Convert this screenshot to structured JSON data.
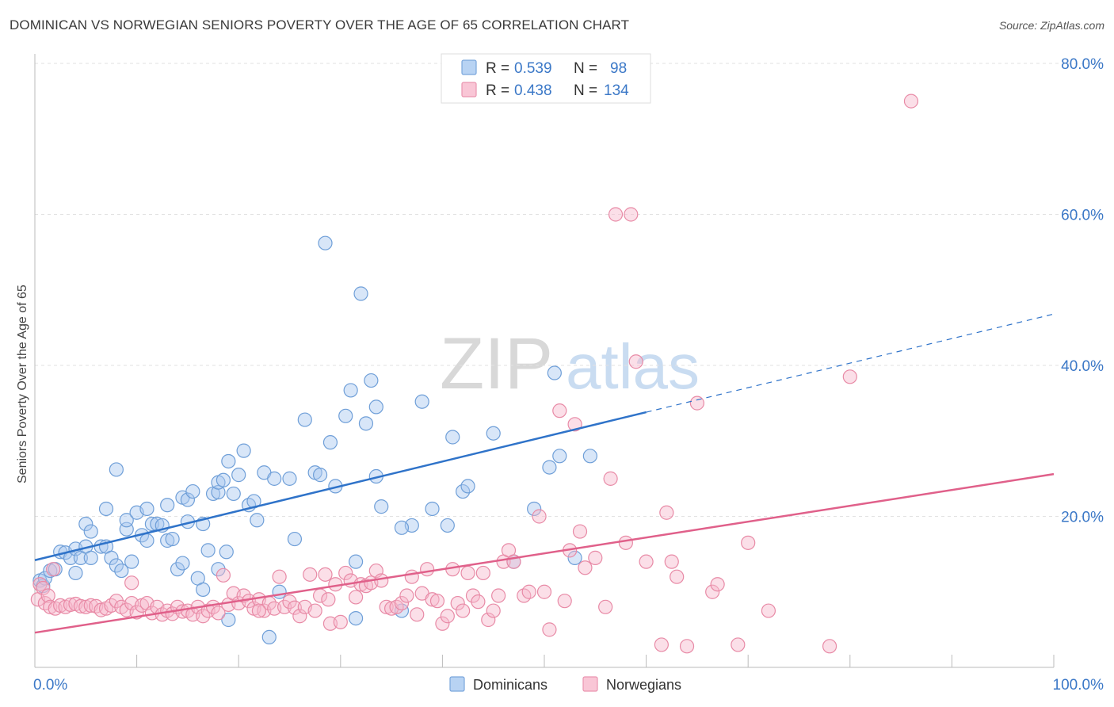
{
  "header": {
    "title": "DOMINICAN VS NORWEGIAN SENIORS POVERTY OVER THE AGE OF 65 CORRELATION CHART",
    "source": "Source: ZipAtlas.com"
  },
  "watermark": {
    "part1": "ZIP",
    "part2": "atlas"
  },
  "legend_top": [
    {
      "r_label": "R = ",
      "r_value": "0.539",
      "n_label": "N = ",
      "n_value": "98"
    },
    {
      "r_label": "R = ",
      "r_value": "0.438",
      "n_label": "N = ",
      "n_value": "134"
    }
  ],
  "colors": {
    "dominican_fill": "#a8c8f0",
    "dominican_stroke": "#6f9fd8",
    "dominican_line": "#2f73c9",
    "norwegian_fill": "#f6b9cc",
    "norwegian_stroke": "#e88aa6",
    "norwegian_line": "#e0608a",
    "value_text": "#3b78c7",
    "grid": "#e2e2e2"
  },
  "chart_data": {
    "type": "scatter",
    "title": "DOMINICAN VS NORWEGIAN SENIORS POVERTY OVER THE AGE OF 65 CORRELATION CHART",
    "xlabel": "",
    "ylabel": "Seniors Poverty Over the Age of 65",
    "xlim": [
      0,
      100
    ],
    "ylim": [
      0,
      80
    ],
    "x_tick_labels": [
      "0.0%",
      "100.0%"
    ],
    "y_ticks": [
      20,
      40,
      60,
      80
    ],
    "y_tick_labels": [
      "20.0%",
      "40.0%",
      "60.0%",
      "80.0%"
    ],
    "grid": true,
    "legend_placement": "bottom-center",
    "series": [
      {
        "name": "Dominicans",
        "r": 0.539,
        "n": 98,
        "trend": {
          "x0": 0,
          "y0": 14.2,
          "x1": 60,
          "y1": 33.8,
          "dash_x1": 100,
          "dash_y1": 46.8
        },
        "points": [
          [
            0.5,
            11.5
          ],
          [
            0.8,
            10.8
          ],
          [
            1.0,
            11.8
          ],
          [
            1.5,
            12.8
          ],
          [
            2.0,
            13.0
          ],
          [
            2.5,
            15.3
          ],
          [
            3.0,
            15.2
          ],
          [
            3.5,
            14.5
          ],
          [
            4.0,
            15.7
          ],
          [
            4.0,
            12.5
          ],
          [
            4.5,
            14.5
          ],
          [
            5.0,
            16.0
          ],
          [
            5.0,
            19.0
          ],
          [
            5.5,
            14.5
          ],
          [
            5.5,
            18.0
          ],
          [
            6.5,
            16.0
          ],
          [
            7.0,
            16.0
          ],
          [
            7.0,
            21.0
          ],
          [
            7.5,
            14.5
          ],
          [
            8.0,
            13.5
          ],
          [
            8.0,
            26.2
          ],
          [
            8.5,
            12.8
          ],
          [
            9.0,
            18.3
          ],
          [
            9.0,
            19.5
          ],
          [
            9.5,
            14.0
          ],
          [
            10.0,
            20.5
          ],
          [
            10.5,
            17.5
          ],
          [
            11.0,
            21.0
          ],
          [
            11.0,
            16.8
          ],
          [
            11.5,
            19.0
          ],
          [
            12.0,
            19.0
          ],
          [
            12.5,
            18.8
          ],
          [
            13.0,
            21.5
          ],
          [
            13.0,
            16.8
          ],
          [
            13.5,
            17.0
          ],
          [
            14.0,
            13.0
          ],
          [
            14.5,
            13.8
          ],
          [
            14.5,
            22.5
          ],
          [
            15.0,
            19.3
          ],
          [
            15.0,
            22.2
          ],
          [
            15.5,
            23.3
          ],
          [
            16.0,
            11.8
          ],
          [
            16.5,
            10.3
          ],
          [
            16.5,
            19.0
          ],
          [
            17.0,
            15.5
          ],
          [
            17.5,
            23.0
          ],
          [
            18.0,
            13.0
          ],
          [
            18.0,
            23.2
          ],
          [
            18.0,
            24.5
          ],
          [
            18.5,
            24.8
          ],
          [
            18.8,
            15.3
          ],
          [
            19.0,
            27.3
          ],
          [
            19.0,
            6.3
          ],
          [
            19.5,
            23.0
          ],
          [
            20.0,
            25.5
          ],
          [
            20.5,
            28.7
          ],
          [
            21.0,
            21.5
          ],
          [
            21.5,
            22.0
          ],
          [
            21.8,
            19.5
          ],
          [
            22.5,
            25.8
          ],
          [
            23.0,
            4.0
          ],
          [
            23.5,
            25.0
          ],
          [
            24.0,
            10.0
          ],
          [
            25.0,
            25.0
          ],
          [
            25.5,
            17.0
          ],
          [
            26.5,
            32.8
          ],
          [
            27.5,
            25.8
          ],
          [
            28.0,
            25.5
          ],
          [
            28.5,
            56.2
          ],
          [
            29.0,
            29.8
          ],
          [
            29.5,
            24.0
          ],
          [
            30.5,
            33.3
          ],
          [
            31.0,
            36.7
          ],
          [
            31.5,
            6.5
          ],
          [
            31.5,
            14.0
          ],
          [
            32.0,
            49.5
          ],
          [
            32.5,
            32.3
          ],
          [
            33.0,
            38.0
          ],
          [
            33.5,
            34.5
          ],
          [
            33.5,
            25.3
          ],
          [
            34.0,
            21.3
          ],
          [
            36.0,
            7.5
          ],
          [
            37.0,
            18.8
          ],
          [
            38.0,
            35.2
          ],
          [
            39.0,
            21.0
          ],
          [
            40.5,
            18.8
          ],
          [
            41.0,
            30.5
          ],
          [
            42.0,
            23.3
          ],
          [
            42.5,
            24.0
          ],
          [
            45.0,
            31.0
          ],
          [
            49.0,
            21.0
          ],
          [
            50.5,
            26.5
          ],
          [
            51.0,
            39.0
          ],
          [
            51.5,
            28.0
          ],
          [
            54.5,
            28.0
          ],
          [
            53.0,
            14.5
          ],
          [
            47.0,
            14.0
          ],
          [
            36.0,
            18.5
          ]
        ]
      },
      {
        "name": "Norwegians",
        "r": 0.438,
        "n": 134,
        "trend": {
          "x0": 0,
          "y0": 4.6,
          "x1": 100,
          "y1": 25.6
        },
        "points": [
          [
            0.3,
            9.0
          ],
          [
            0.5,
            11.0
          ],
          [
            0.8,
            10.5
          ],
          [
            1.0,
            8.5
          ],
          [
            1.3,
            9.5
          ],
          [
            1.5,
            8.0
          ],
          [
            1.8,
            13.0
          ],
          [
            2.0,
            7.8
          ],
          [
            2.5,
            8.2
          ],
          [
            3.0,
            8.0
          ],
          [
            3.5,
            8.3
          ],
          [
            4.0,
            8.4
          ],
          [
            4.5,
            8.1
          ],
          [
            5.0,
            8.0
          ],
          [
            5.5,
            8.2
          ],
          [
            6.0,
            8.1
          ],
          [
            6.5,
            7.6
          ],
          [
            7.0,
            7.8
          ],
          [
            7.5,
            8.2
          ],
          [
            8.0,
            8.8
          ],
          [
            8.5,
            8.0
          ],
          [
            9.0,
            7.6
          ],
          [
            9.5,
            8.5
          ],
          [
            9.5,
            11.2
          ],
          [
            10.0,
            7.3
          ],
          [
            10.5,
            8.2
          ],
          [
            11.0,
            8.5
          ],
          [
            11.5,
            7.2
          ],
          [
            12.0,
            8.0
          ],
          [
            12.5,
            7.0
          ],
          [
            13.0,
            7.5
          ],
          [
            13.5,
            7.1
          ],
          [
            14.0,
            8.0
          ],
          [
            14.5,
            7.4
          ],
          [
            15.0,
            7.5
          ],
          [
            15.5,
            7.0
          ],
          [
            16.0,
            8.0
          ],
          [
            16.5,
            6.8
          ],
          [
            17.0,
            7.5
          ],
          [
            17.5,
            8.0
          ],
          [
            18.0,
            7.2
          ],
          [
            18.5,
            12.2
          ],
          [
            19.0,
            8.3
          ],
          [
            19.5,
            9.8
          ],
          [
            20.0,
            8.5
          ],
          [
            20.5,
            9.5
          ],
          [
            21.0,
            8.8
          ],
          [
            21.5,
            7.8
          ],
          [
            22.0,
            9.0
          ],
          [
            22.5,
            7.5
          ],
          [
            23.0,
            8.5
          ],
          [
            23.5,
            7.8
          ],
          [
            24.0,
            12.0
          ],
          [
            24.5,
            8.0
          ],
          [
            25.0,
            8.7
          ],
          [
            25.5,
            7.9
          ],
          [
            26.0,
            6.8
          ],
          [
            26.5,
            8.0
          ],
          [
            27.0,
            12.3
          ],
          [
            27.5,
            7.5
          ],
          [
            28.0,
            9.5
          ],
          [
            28.5,
            12.3
          ],
          [
            29.0,
            5.8
          ],
          [
            29.5,
            11.0
          ],
          [
            30.0,
            6.0
          ],
          [
            30.5,
            12.5
          ],
          [
            31.0,
            11.5
          ],
          [
            31.5,
            9.3
          ],
          [
            32.0,
            11.0
          ],
          [
            32.5,
            10.8
          ],
          [
            33.0,
            11.2
          ],
          [
            33.5,
            12.8
          ],
          [
            34.0,
            11.5
          ],
          [
            34.5,
            8.0
          ],
          [
            35.0,
            7.8
          ],
          [
            35.5,
            8.0
          ],
          [
            36.0,
            8.5
          ],
          [
            36.5,
            9.5
          ],
          [
            37.0,
            12.0
          ],
          [
            37.5,
            7.0
          ],
          [
            38.0,
            9.8
          ],
          [
            38.5,
            13.0
          ],
          [
            39.0,
            9.0
          ],
          [
            39.5,
            8.8
          ],
          [
            40.0,
            5.8
          ],
          [
            40.5,
            6.8
          ],
          [
            41.0,
            13.0
          ],
          [
            41.5,
            8.5
          ],
          [
            42.0,
            7.5
          ],
          [
            42.5,
            12.5
          ],
          [
            43.0,
            9.5
          ],
          [
            43.5,
            8.7
          ],
          [
            44.0,
            12.5
          ],
          [
            44.5,
            6.3
          ],
          [
            45.0,
            7.5
          ],
          [
            45.5,
            9.5
          ],
          [
            46.0,
            14.0
          ],
          [
            46.5,
            15.5
          ],
          [
            47.0,
            14.0
          ],
          [
            48.0,
            9.5
          ],
          [
            48.5,
            10.0
          ],
          [
            49.5,
            20.0
          ],
          [
            50.0,
            10.0
          ],
          [
            50.5,
            5.0
          ],
          [
            51.5,
            34.0
          ],
          [
            52.0,
            8.8
          ],
          [
            53.0,
            32.2
          ],
          [
            53.5,
            18.0
          ],
          [
            54.0,
            13.2
          ],
          [
            55.0,
            14.5
          ],
          [
            56.0,
            8.0
          ],
          [
            56.5,
            25.0
          ],
          [
            57.0,
            60.0
          ],
          [
            58.5,
            60.0
          ],
          [
            59.0,
            40.5
          ],
          [
            60.0,
            14.0
          ],
          [
            61.5,
            3.0
          ],
          [
            62.0,
            20.5
          ],
          [
            62.5,
            14.0
          ],
          [
            63.0,
            12.0
          ],
          [
            64.0,
            2.8
          ],
          [
            65.0,
            35.0
          ],
          [
            66.5,
            10.0
          ],
          [
            67.0,
            11.0
          ],
          [
            69.0,
            3.0
          ],
          [
            70.0,
            16.5
          ],
          [
            72.0,
            7.5
          ],
          [
            78.0,
            2.8
          ],
          [
            80.0,
            38.5
          ],
          [
            86.0,
            75.0
          ],
          [
            52.5,
            15.5
          ],
          [
            58.0,
            16.5
          ],
          [
            22.0,
            7.5
          ],
          [
            28.8,
            9.0
          ]
        ]
      }
    ]
  },
  "legend_bottom": [
    {
      "label": "Dominicans"
    },
    {
      "label": "Norwegians"
    }
  ]
}
